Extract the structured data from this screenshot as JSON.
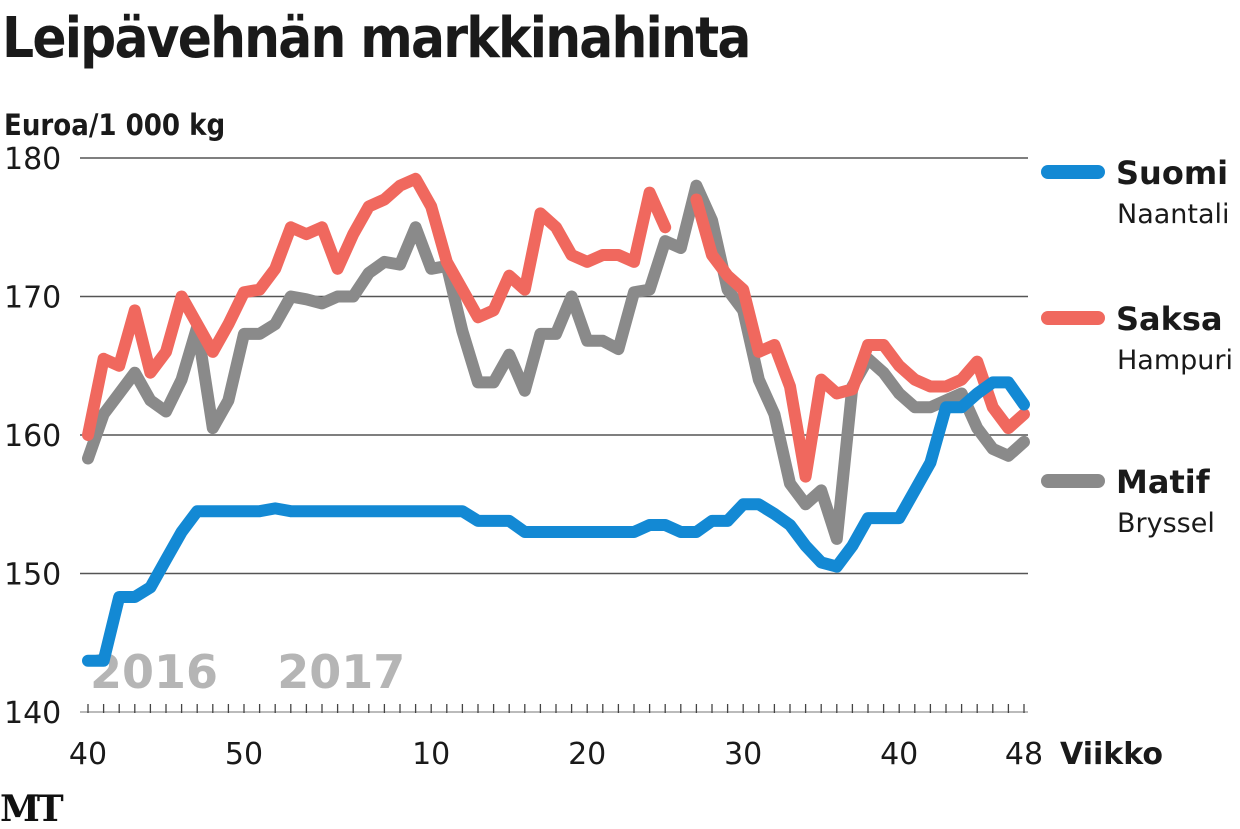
{
  "chart_data": {
    "type": "line",
    "title": "Leipävehnän markkinahinta",
    "ylabel": "Euroa/1 000 kg",
    "xlabel": "Viikko",
    "ylim": [
      140,
      180
    ],
    "yticks": [
      140,
      150,
      160,
      170,
      180
    ],
    "x_weeks": [
      40,
      41,
      42,
      43,
      44,
      45,
      46,
      47,
      48,
      49,
      50,
      51,
      52,
      1,
      2,
      3,
      4,
      5,
      6,
      7,
      8,
      9,
      10,
      11,
      12,
      13,
      14,
      15,
      16,
      17,
      18,
      19,
      20,
      21,
      22,
      23,
      24,
      25,
      26,
      27,
      28,
      29,
      30,
      31,
      32,
      33,
      34,
      35,
      36,
      37,
      38,
      39,
      40,
      41,
      42,
      43,
      44,
      45,
      46,
      47,
      48
    ],
    "xtick_labels": [
      {
        "index": 0,
        "label": "40"
      },
      {
        "index": 10,
        "label": "50"
      },
      {
        "index": 22,
        "label": "10"
      },
      {
        "index": 32,
        "label": "20"
      },
      {
        "index": 42,
        "label": "30"
      },
      {
        "index": 52,
        "label": "40"
      },
      {
        "index": 60,
        "label": "48"
      }
    ],
    "year_labels": [
      {
        "index": 0,
        "label": "2016"
      },
      {
        "index": 12,
        "label": "2017"
      }
    ],
    "series": [
      {
        "name": "Saksa",
        "sub": "Hampuri",
        "color": "#f0685e",
        "values": [
          160,
          165.5,
          165,
          169,
          164.5,
          166,
          170,
          168,
          166,
          168,
          170.3,
          170.5,
          172,
          175,
          174.5,
          175,
          172,
          174.5,
          176.5,
          177,
          178,
          178.5,
          176.5,
          172.5,
          170.5,
          168.5,
          169,
          171.5,
          170.5,
          176,
          175,
          173,
          172.5,
          173,
          173,
          172.5,
          177.5,
          175,
          null,
          177,
          173,
          171.5,
          170.5,
          166,
          166.5,
          163.5,
          157,
          164,
          163,
          163.3,
          166.5,
          166.5,
          165,
          164,
          163.5,
          163.5,
          164,
          165.3,
          162,
          160.5,
          161.5
        ]
      },
      {
        "name": "Matif",
        "sub": "Bryssel",
        "color": "#8a8a8a",
        "values": [
          158.3,
          161.5,
          163,
          164.5,
          162.5,
          161.7,
          164,
          167.8,
          160.5,
          162.5,
          167.3,
          167.3,
          168,
          170,
          169.8,
          169.5,
          170,
          170,
          171.7,
          172.5,
          172.3,
          175,
          172,
          172.2,
          167.5,
          163.8,
          163.8,
          165.8,
          163.2,
          167.3,
          167.3,
          170,
          166.8,
          166.8,
          166.2,
          170.3,
          170.5,
          174,
          173.5,
          178,
          175.5,
          170.5,
          169,
          164,
          161.5,
          156.5,
          155,
          156,
          152.5,
          163.5,
          165.5,
          164.5,
          163,
          162,
          162,
          162.5,
          163,
          160.5,
          159,
          158.5,
          159.5
        ]
      },
      {
        "name": "Suomi",
        "sub": "Naantali",
        "color": "#1389d4",
        "values": [
          143.7,
          143.7,
          148.3,
          148.3,
          149,
          151,
          153,
          154.5,
          154.5,
          154.5,
          154.5,
          154.5,
          154.7,
          154.5,
          154.5,
          154.5,
          154.5,
          154.5,
          154.5,
          154.5,
          154.5,
          154.5,
          154.5,
          154.5,
          154.5,
          153.8,
          153.8,
          153.8,
          153,
          153,
          153,
          153,
          153,
          153,
          153,
          153,
          153.5,
          153.5,
          153,
          153,
          153.8,
          153.8,
          155,
          155,
          154.3,
          153.5,
          152,
          150.8,
          150.5,
          152,
          154,
          154,
          154,
          156,
          158,
          162,
          162,
          163,
          163.8,
          163.8,
          162.2
        ]
      }
    ],
    "legend_order": [
      "Suomi",
      "Saksa",
      "Matif"
    ],
    "legend": "right",
    "grid": "horizontal"
  },
  "logo": "MT"
}
